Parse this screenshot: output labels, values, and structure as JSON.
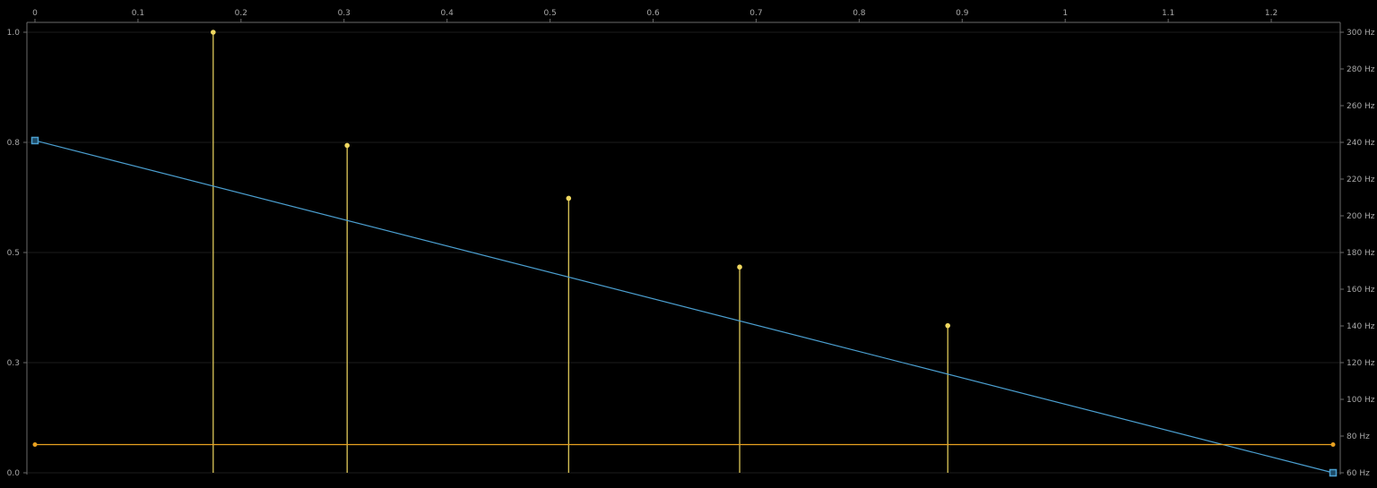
{
  "chart_data": {
    "type": "line",
    "title": "",
    "xlabel": "",
    "ylabel": "",
    "xlim": [
      0,
      1.26
    ],
    "x_ticks": [
      0,
      0.1,
      0.2,
      0.3,
      0.4,
      0.5,
      0.6,
      0.7,
      0.8,
      0.9,
      1,
      1.1,
      1.2
    ],
    "x_tick_labels": [
      "0",
      "0.1",
      "0.2",
      "0.3",
      "0.4",
      "0.5",
      "0.6",
      "0.7",
      "0.8",
      "0.9",
      "1",
      "1.1",
      "1.2"
    ],
    "y_left": {
      "ylim": [
        0,
        1
      ],
      "ticks": [
        0,
        0.25,
        0.5,
        0.75,
        1
      ],
      "tick_labels": [
        "0.0",
        "0.3",
        "0.5",
        "0.8",
        "1.0"
      ]
    },
    "y_right": {
      "ylim": [
        60,
        300
      ],
      "unit": "Hz",
      "ticks": [
        60,
        80,
        100,
        120,
        140,
        160,
        180,
        200,
        220,
        240,
        260,
        280,
        300
      ],
      "tick_labels": [
        "60 Hz",
        "80 Hz",
        "100 Hz",
        "120 Hz",
        "140 Hz",
        "160 Hz",
        "180 Hz",
        "200 Hz",
        "220 Hz",
        "240 Hz",
        "260 Hz",
        "280 Hz",
        "300 Hz"
      ]
    },
    "grid": true,
    "series": [
      {
        "kind": "stem",
        "axis": "left",
        "color": "#f0d860",
        "points": [
          {
            "x": 0.173,
            "y": 1.0
          },
          {
            "x": 0.303,
            "y": 0.743
          },
          {
            "x": 0.518,
            "y": 0.623
          },
          {
            "x": 0.684,
            "y": 0.467
          },
          {
            "x": 0.886,
            "y": 0.334
          }
        ]
      },
      {
        "kind": "line",
        "axis": "right",
        "color": "#4b9fd0",
        "markers": "square",
        "points": [
          {
            "x": 0,
            "y": 241
          },
          {
            "x": 1.26,
            "y": 60
          }
        ]
      },
      {
        "kind": "line",
        "axis": "left",
        "color": "#e8a020",
        "markers": "dot",
        "points": [
          {
            "x": 0,
            "y": 0.064
          },
          {
            "x": 1.26,
            "y": 0.064
          }
        ]
      }
    ]
  }
}
